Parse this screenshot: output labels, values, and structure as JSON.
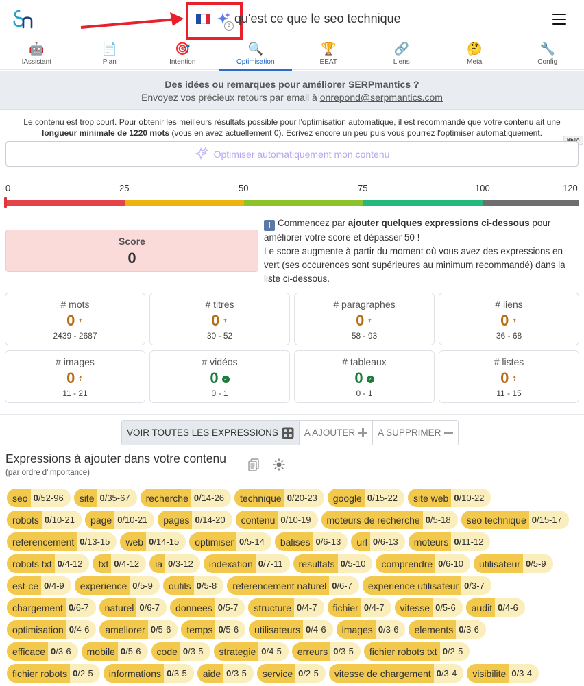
{
  "header": {
    "title": "qu'est ce que le seo technique",
    "flag_colors": [
      "#1c4ea8",
      "#ffffff",
      "#e0253a"
    ],
    "highlight_color": "#e8202a",
    "beta_mark": "β"
  },
  "tabs": [
    {
      "label": "IAssistant",
      "icon": "🤖"
    },
    {
      "label": "Plan",
      "icon": "📄"
    },
    {
      "label": "Intention",
      "icon": "🎯"
    },
    {
      "label": "Optimisation",
      "icon": "🔍",
      "active": true
    },
    {
      "label": "EEAT",
      "icon": "🏆"
    },
    {
      "label": "Liens",
      "icon": "🔗"
    },
    {
      "label": "Meta",
      "icon": "🤔"
    },
    {
      "label": "Config",
      "icon": "🔧"
    }
  ],
  "feedback": {
    "title": "Des idées ou remarques pour améliorer SERPmantics ?",
    "text": "Envoyez vos précieux retours par email à ",
    "email": "onrepond@serpmantics.com"
  },
  "warning": {
    "part1": "Le contenu est trop court. Pour obtenir les meilleurs résultats possible pour l'optimisation automatique, il est recommandé que votre contenu ait une ",
    "bold": "longueur minimale de 1220 mots",
    "part2": " (vous en avez actuellement 0). Ecrivez encore un peu puis vous pourrez l'optimiser automatiquement."
  },
  "auto_optimize": {
    "label": "Optimiser automatiquement mon contenu",
    "badge": "BETA"
  },
  "scale": {
    "ticks": [
      "0",
      "25",
      "50",
      "75",
      "100",
      "120"
    ],
    "colors": [
      "#e5434a",
      "#edb30e",
      "#8cc32a",
      "#25b97e",
      "#6e6e6e"
    ],
    "current": 0
  },
  "score": {
    "label": "Score",
    "value": "0"
  },
  "score_info": {
    "line1_pre": "Commencez par ",
    "line1_bold": "ajouter quelques expressions ci-dessous",
    "line1_post": " pour améliorer votre score et dépasser 50 !",
    "line2": "Le score augmente à partir du moment où vous avez des expressions en vert (ses occurences sont supérieures au minimum recommandé) dans la liste ci-dessous."
  },
  "metrics": [
    {
      "label": "# mots",
      "value": "0",
      "range": "2439 - 2687",
      "status": "low"
    },
    {
      "label": "# titres",
      "value": "0",
      "range": "30 - 52",
      "status": "low"
    },
    {
      "label": "# paragraphes",
      "value": "0",
      "range": "58 - 93",
      "status": "low"
    },
    {
      "label": "# liens",
      "value": "0",
      "range": "36 - 68",
      "status": "low"
    },
    {
      "label": "# images",
      "value": "0",
      "range": "11 - 21",
      "status": "low"
    },
    {
      "label": "# vidéos",
      "value": "0",
      "range": "0 - 1",
      "status": "ok"
    },
    {
      "label": "# tableaux",
      "value": "0",
      "range": "0 - 1",
      "status": "ok"
    },
    {
      "label": "# listes",
      "value": "0",
      "range": "11 - 15",
      "status": "low"
    }
  ],
  "filters": [
    {
      "label": "VOIR TOUTES LES EXPRESSIONS",
      "icon": "grid-icon",
      "active": true
    },
    {
      "label": "A AJOUTER",
      "icon": "plus-icon"
    },
    {
      "label": "A SUPPRIMER",
      "icon": "minus-icon"
    }
  ],
  "expressions": {
    "title": "Expressions à ajouter dans votre contenu",
    "subtitle": "(par ordre d'importance)",
    "rows": [
      [
        [
          "seo",
          "0",
          "/52-96"
        ],
        [
          "site",
          "0",
          "/35-67"
        ],
        [
          "recherche",
          "0",
          "/14-26"
        ],
        [
          "technique",
          "0",
          "/20-23"
        ],
        [
          "google",
          "0",
          "/15-22"
        ],
        [
          "site web",
          "0",
          "/10-22"
        ]
      ],
      [
        [
          "robots",
          "0",
          "/10-21"
        ],
        [
          "page",
          "0",
          "/10-21"
        ],
        [
          "pages",
          "0",
          "/14-20"
        ],
        [
          "contenu",
          "0",
          "/10-19"
        ],
        [
          "moteurs de recherche",
          "0",
          "/5-18"
        ],
        [
          "seo technique",
          "0",
          "/15-17"
        ]
      ],
      [
        [
          "referencement",
          "0",
          "/13-15"
        ],
        [
          "web",
          "0",
          "/14-15"
        ],
        [
          "optimiser",
          "0",
          "/5-14"
        ],
        [
          "balises",
          "0",
          "/6-13"
        ],
        [
          "url",
          "0",
          "/6-13"
        ],
        [
          "moteurs",
          "0",
          "/11-12"
        ]
      ],
      [
        [
          "robots txt",
          "0",
          "/4-12"
        ],
        [
          "txt",
          "0",
          "/4-12"
        ],
        [
          "ia",
          "0",
          "/3-12"
        ],
        [
          "indexation",
          "0",
          "/7-11"
        ],
        [
          "resultats",
          "0",
          "/5-10"
        ],
        [
          "comprendre",
          "0",
          "/6-10"
        ],
        [
          "utilisateur",
          "0",
          "/5-9"
        ]
      ],
      [
        [
          "est-ce",
          "0",
          "/4-9"
        ],
        [
          "experience",
          "0",
          "/5-9"
        ],
        [
          "outils",
          "0",
          "/5-8"
        ],
        [
          "referencement naturel",
          "0",
          "/6-7"
        ],
        [
          "experience utilisateur",
          "0",
          "/3-7"
        ]
      ],
      [
        [
          "chargement",
          "0",
          "/6-7"
        ],
        [
          "naturel",
          "0",
          "/6-7"
        ],
        [
          "donnees",
          "0",
          "/5-7"
        ],
        [
          "structure",
          "0",
          "/4-7"
        ],
        [
          "fichier",
          "0",
          "/4-7"
        ],
        [
          "vitesse",
          "0",
          "/5-6"
        ],
        [
          "audit",
          "0",
          "/4-6"
        ]
      ],
      [
        [
          "optimisation",
          "0",
          "/4-6"
        ],
        [
          "ameliorer",
          "0",
          "/5-6"
        ],
        [
          "temps",
          "0",
          "/5-6"
        ],
        [
          "utilisateurs",
          "0",
          "/4-6"
        ],
        [
          "images",
          "0",
          "/3-6"
        ],
        [
          "elements",
          "0",
          "/3-6"
        ]
      ],
      [
        [
          "efficace",
          "0",
          "/3-6"
        ],
        [
          "mobile",
          "0",
          "/5-6"
        ],
        [
          "code",
          "0",
          "/3-5"
        ],
        [
          "strategie",
          "0",
          "/4-5"
        ],
        [
          "erreurs",
          "0",
          "/3-5"
        ],
        [
          "fichier robots txt",
          "0",
          "/2-5"
        ]
      ],
      [
        [
          "fichier robots",
          "0",
          "/2-5"
        ],
        [
          "informations",
          "0",
          "/3-5"
        ],
        [
          "aide",
          "0",
          "/3-5"
        ],
        [
          "service",
          "0",
          "/2-5"
        ],
        [
          "vitesse de chargement",
          "0",
          "/3-4"
        ],
        [
          "visibilite",
          "0",
          "/3-4"
        ]
      ]
    ]
  }
}
